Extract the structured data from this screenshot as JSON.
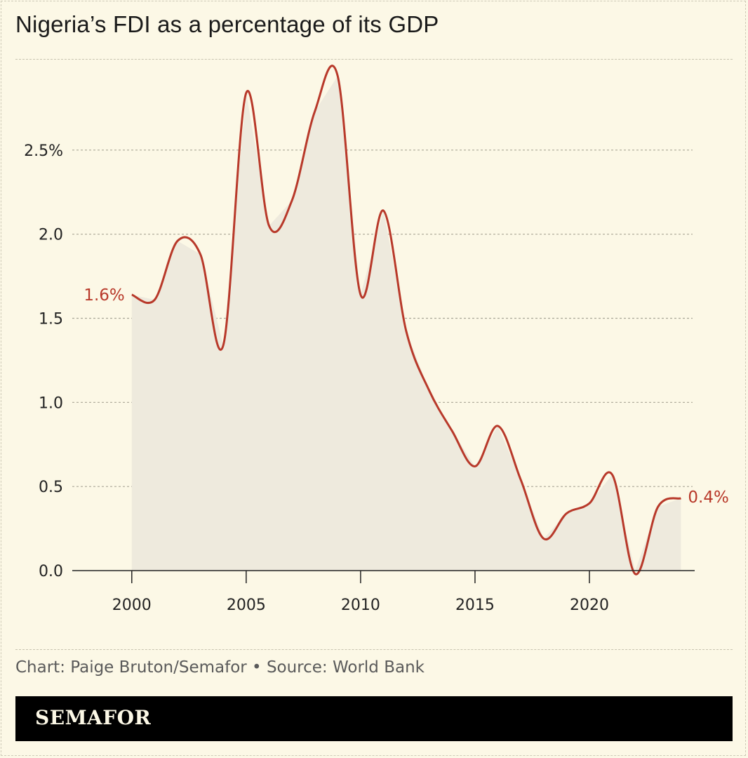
{
  "title": "Nigeria’s FDI as a percentage of its GDP",
  "source": "Chart: Paige Bruton/Semafor • Source: World Bank",
  "brand": "SEMAFOR",
  "colors": {
    "line": "#b8392a",
    "area": "#eeeadd",
    "grid": "#a9a697",
    "background": "#fcf8e6"
  },
  "chart_data": {
    "type": "area",
    "title": "Nigeria’s FDI as a percentage of its GDP",
    "xlabel": "",
    "ylabel": "",
    "x": [
      2000,
      2001,
      2002,
      2003,
      2004,
      2005,
      2006,
      2007,
      2008,
      2009,
      2010,
      2011,
      2012,
      2013,
      2014,
      2015,
      2016,
      2017,
      2018,
      2019,
      2020,
      2021,
      2022,
      2023,
      2024
    ],
    "series": [
      {
        "values": [
          1.64,
          1.61,
          1.96,
          1.88,
          1.34,
          2.84,
          2.05,
          2.2,
          2.73,
          2.94,
          1.64,
          2.14,
          1.42,
          1.07,
          0.83,
          0.62,
          0.86,
          0.54,
          0.19,
          0.34,
          0.4,
          0.57,
          -0.02,
          0.38,
          0.43
        ]
      }
    ],
    "xticks": [
      "2000",
      "2005",
      "2010",
      "2015",
      "2020"
    ],
    "yticks": [
      "0.0",
      "0.5",
      "1.0",
      "1.5",
      "2.0",
      "2.5%"
    ],
    "ylim": [
      0,
      3
    ],
    "xlim": [
      1997.4,
      2024.6
    ],
    "grid": true,
    "start_label": "1.6%",
    "end_label": "0.4%"
  }
}
